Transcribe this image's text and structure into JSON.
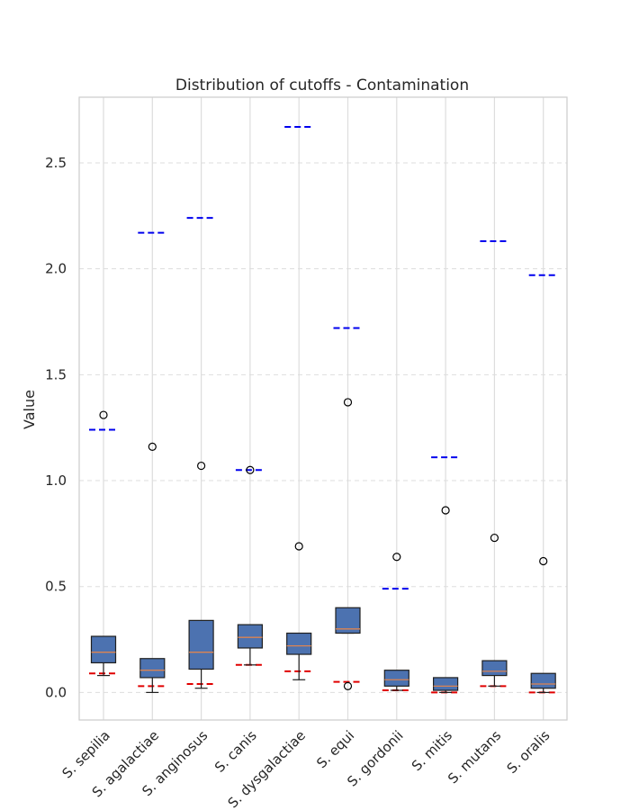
{
  "chart_data": {
    "type": "box",
    "title": "Distribution of cutoffs - Contamination",
    "xlabel": "",
    "ylabel": "Value",
    "ylim": [
      -0.13,
      2.81
    ],
    "yticks": [
      0.0,
      0.5,
      1.0,
      1.5,
      2.0,
      2.5
    ],
    "ytick_labels": [
      "0.0",
      "0.5",
      "1.0",
      "1.5",
      "2.0",
      "2.5"
    ],
    "grid": true,
    "colors": {
      "box_fill": "#4c72b0",
      "box_edge": "#1f1f1f",
      "median": "#dd8452",
      "upper_line": "#0000ee",
      "lower_line": "#e00000",
      "grid": "#dddddd",
      "axis": "#cccccc"
    },
    "categories": [
      "S. sepilia",
      "S. agalactiae",
      "S. anginosus",
      "S. canis",
      "S. dysgalactiae",
      "S. equi",
      "S. gordonii",
      "S. mitis",
      "S. mutans",
      "S. oralis"
    ],
    "boxes": [
      {
        "q1": 0.14,
        "median": 0.19,
        "q3": 0.265,
        "whisker_low": 0.08,
        "whisker_high": 0.265,
        "outliers": [
          1.31
        ]
      },
      {
        "q1": 0.07,
        "median": 0.105,
        "q3": 0.16,
        "whisker_low": 0.0,
        "whisker_high": 0.16,
        "outliers": [
          1.16
        ]
      },
      {
        "q1": 0.11,
        "median": 0.19,
        "q3": 0.34,
        "whisker_low": 0.02,
        "whisker_high": 0.34,
        "outliers": [
          1.07
        ]
      },
      {
        "q1": 0.21,
        "median": 0.26,
        "q3": 0.32,
        "whisker_low": 0.13,
        "whisker_high": 0.32,
        "outliers": [
          1.05
        ]
      },
      {
        "q1": 0.18,
        "median": 0.22,
        "q3": 0.28,
        "whisker_low": 0.06,
        "whisker_high": 0.28,
        "outliers": [
          0.69
        ]
      },
      {
        "q1": 0.28,
        "median": 0.3,
        "q3": 0.4,
        "whisker_low": 0.28,
        "whisker_high": 0.4,
        "outliers": [
          1.37,
          0.03
        ]
      },
      {
        "q1": 0.03,
        "median": 0.06,
        "q3": 0.105,
        "whisker_low": 0.01,
        "whisker_high": 0.105,
        "outliers": [
          0.64
        ]
      },
      {
        "q1": 0.01,
        "median": 0.03,
        "q3": 0.07,
        "whisker_low": 0.0,
        "whisker_high": 0.07,
        "outliers": [
          0.86
        ]
      },
      {
        "q1": 0.08,
        "median": 0.1,
        "q3": 0.15,
        "whisker_low": 0.03,
        "whisker_high": 0.15,
        "outliers": [
          0.73
        ]
      },
      {
        "q1": 0.02,
        "median": 0.04,
        "q3": 0.09,
        "whisker_low": 0.0,
        "whisker_high": 0.09,
        "outliers": [
          0.62
        ]
      }
    ],
    "upper_cutoffs": [
      1.24,
      2.17,
      2.24,
      1.05,
      2.67,
      1.72,
      0.49,
      1.11,
      2.13,
      1.97
    ],
    "lower_cutoffs": [
      0.09,
      0.03,
      0.04,
      0.13,
      0.1,
      0.05,
      0.01,
      0.0,
      0.03,
      0.0
    ]
  }
}
